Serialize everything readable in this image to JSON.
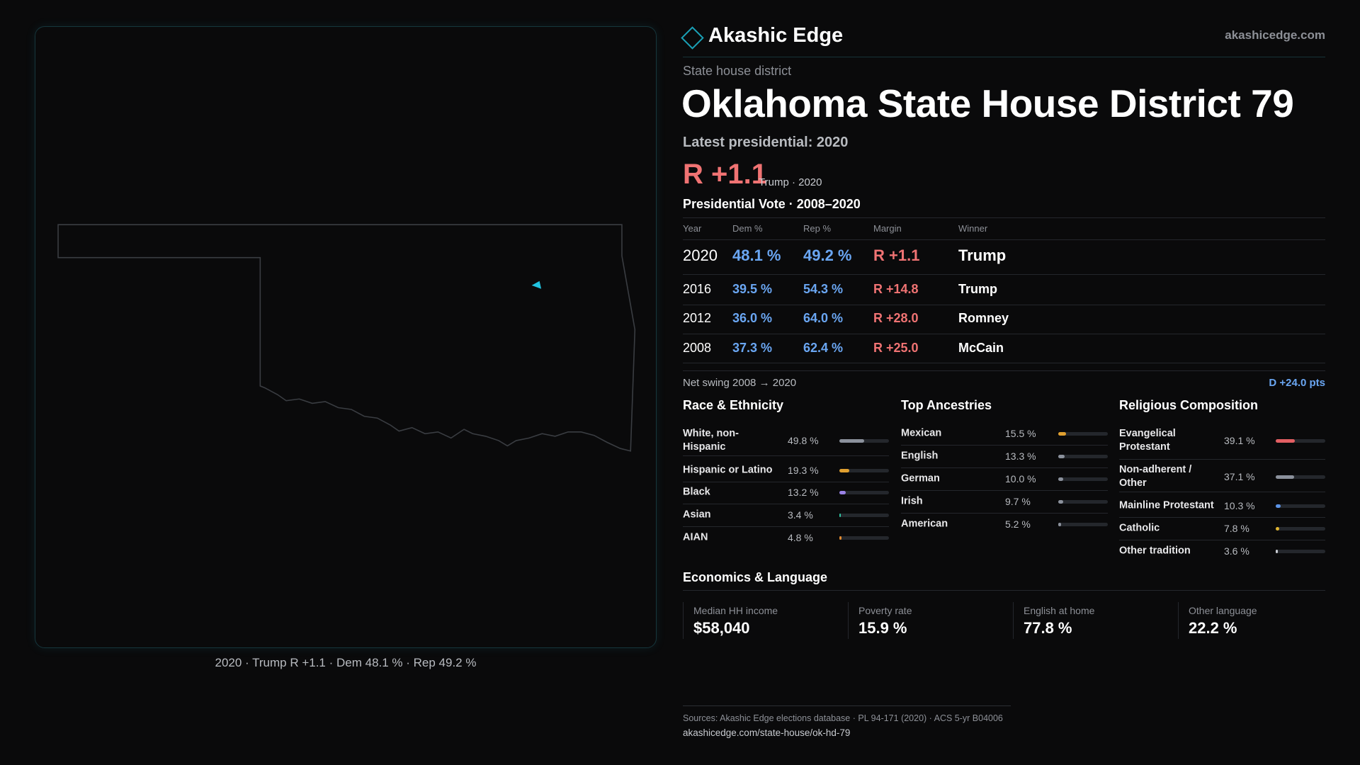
{
  "header": {
    "brand": "Akashic Edge",
    "domain": "akashicedge.com"
  },
  "map": {
    "caption": "2020 · Trump R +1.1 · Dem 48.1 % · Rep 49.2 %"
  },
  "district": {
    "kind": "State house district",
    "title": "Oklahoma State House District 79",
    "latest": "Latest presidential: 2020",
    "margin": "R +1.1",
    "margin_note": "Trump · 2020"
  },
  "vote_table": {
    "title": "Presidential Vote · 2008–2020",
    "columns": [
      "Year",
      "Dem %",
      "Rep %",
      "Margin",
      "Winner"
    ],
    "rows": [
      [
        "2020",
        "48.1 %",
        "49.2 %",
        "R +1.1",
        "Trump"
      ],
      [
        "2016",
        "39.5 %",
        "54.3 %",
        "R +14.8",
        "Trump"
      ],
      [
        "2012",
        "36.0 %",
        "64.0 %",
        "R +28.0",
        "Romney"
      ],
      [
        "2008",
        "37.3 %",
        "62.4 %",
        "R +25.0",
        "McCain"
      ]
    ]
  },
  "swing": {
    "label": "Net swing 2008 → 2020",
    "value": "D +24.0 pts"
  },
  "race": {
    "title": "Race & Ethnicity",
    "categories": [
      "White, non-Hispanic",
      "Hispanic or Latino",
      "Black",
      "Asian",
      "AIAN"
    ],
    "values": [
      49.8,
      19.3,
      13.2,
      3.4,
      4.8
    ],
    "value_labels": [
      "49.8 %",
      "19.3 %",
      "13.2 %",
      "3.4 %",
      "4.8 %"
    ],
    "colors": [
      "#8b919c",
      "#e0a030",
      "#9a82e6",
      "#2fc4a0",
      "#e08a30"
    ]
  },
  "ancestries": {
    "title": "Top Ancestries",
    "categories": [
      "Mexican",
      "English",
      "German",
      "Irish",
      "American"
    ],
    "values": [
      15.5,
      13.3,
      10.0,
      9.7,
      5.2
    ],
    "value_labels": [
      "15.5 %",
      "13.3 %",
      "10.0 %",
      "9.7 %",
      "5.2 %"
    ],
    "colors": [
      "#e0a030",
      "#8b919c",
      "#8b919c",
      "#8b919c",
      "#8b919c"
    ]
  },
  "religion": {
    "title": "Religious Composition",
    "categories": [
      "Evangelical Protestant",
      "Non-adherent / Other",
      "Mainline Protestant",
      "Catholic",
      "Other tradition"
    ],
    "values": [
      39.1,
      37.1,
      10.3,
      7.8,
      3.6
    ],
    "value_labels": [
      "39.1 %",
      "37.1 %",
      "10.3 %",
      "7.8 %",
      "3.6 %"
    ],
    "colors": [
      "#e35f63",
      "#8b919c",
      "#5b93e6",
      "#e0b530",
      "#c8ccd2"
    ]
  },
  "economics": {
    "title": "Economics & Language",
    "items": [
      {
        "label": "Median HH income",
        "value": "$58,040"
      },
      {
        "label": "Poverty rate",
        "value": "15.9 %"
      },
      {
        "label": "English at home",
        "value": "77.8 %"
      },
      {
        "label": "Other language",
        "value": "22.2 %"
      }
    ]
  },
  "footer": {
    "sources": "Sources: Akashic Edge elections database · PL 94-171 (2020) · ACS 5-yr B04006",
    "url": "akashicedge.com/state-house/ok-hd-79"
  }
}
